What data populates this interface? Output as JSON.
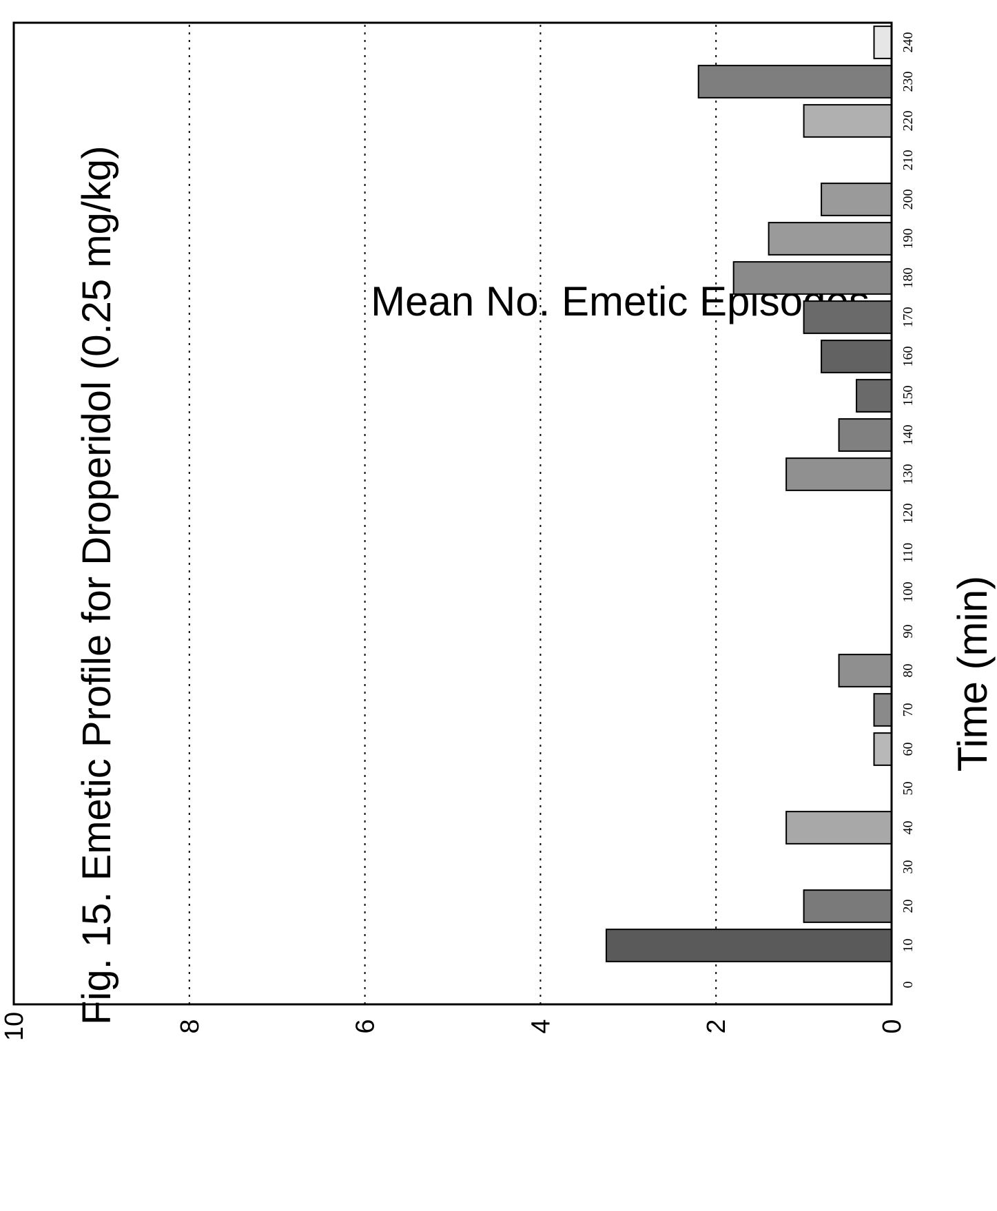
{
  "chart_data": {
    "type": "bar",
    "title": "Fig. 15. Emetic Profile for Droperidol (0.25 mg/kg)",
    "xlabel": "Time (min)",
    "ylabel": "Mean No. Emetic Episodes",
    "categories": [
      "0",
      "10",
      "20",
      "30",
      "40",
      "50",
      "60",
      "70",
      "80",
      "90",
      "100",
      "110",
      "120",
      "130",
      "140",
      "150",
      "160",
      "170",
      "180",
      "190",
      "200",
      "210",
      "220",
      "230",
      "240"
    ],
    "values": [
      0,
      3.25,
      1.0,
      0,
      1.2,
      0,
      0.2,
      0.2,
      0.6,
      0,
      0,
      0,
      0,
      1.2,
      0.6,
      0.4,
      0.8,
      1.0,
      1.8,
      1.4,
      0.8,
      0,
      1.0,
      2.2,
      0.2
    ],
    "ylim": [
      0,
      10
    ],
    "yticks": [
      "0",
      "2",
      "4",
      "6",
      "8",
      "10"
    ],
    "grid": true,
    "bar_colors": [
      "#bdbdbd",
      "#5a5a5a",
      "#7a7a7a",
      "#bdbdbd",
      "#a8a8a8",
      "#bdbdbd",
      "#b8b8b8",
      "#8a8a8a",
      "#8f8f8f",
      "#bdbdbd",
      "#bdbdbd",
      "#bdbdbd",
      "#bdbdbd",
      "#909090",
      "#808080",
      "#6a6a6a",
      "#626262",
      "#6a6a6a",
      "#8a8a8a",
      "#9a9a9a",
      "#9a9a9a",
      "#bdbdbd",
      "#b0b0b0",
      "#7e7e7e",
      "#e6e6e6"
    ]
  }
}
